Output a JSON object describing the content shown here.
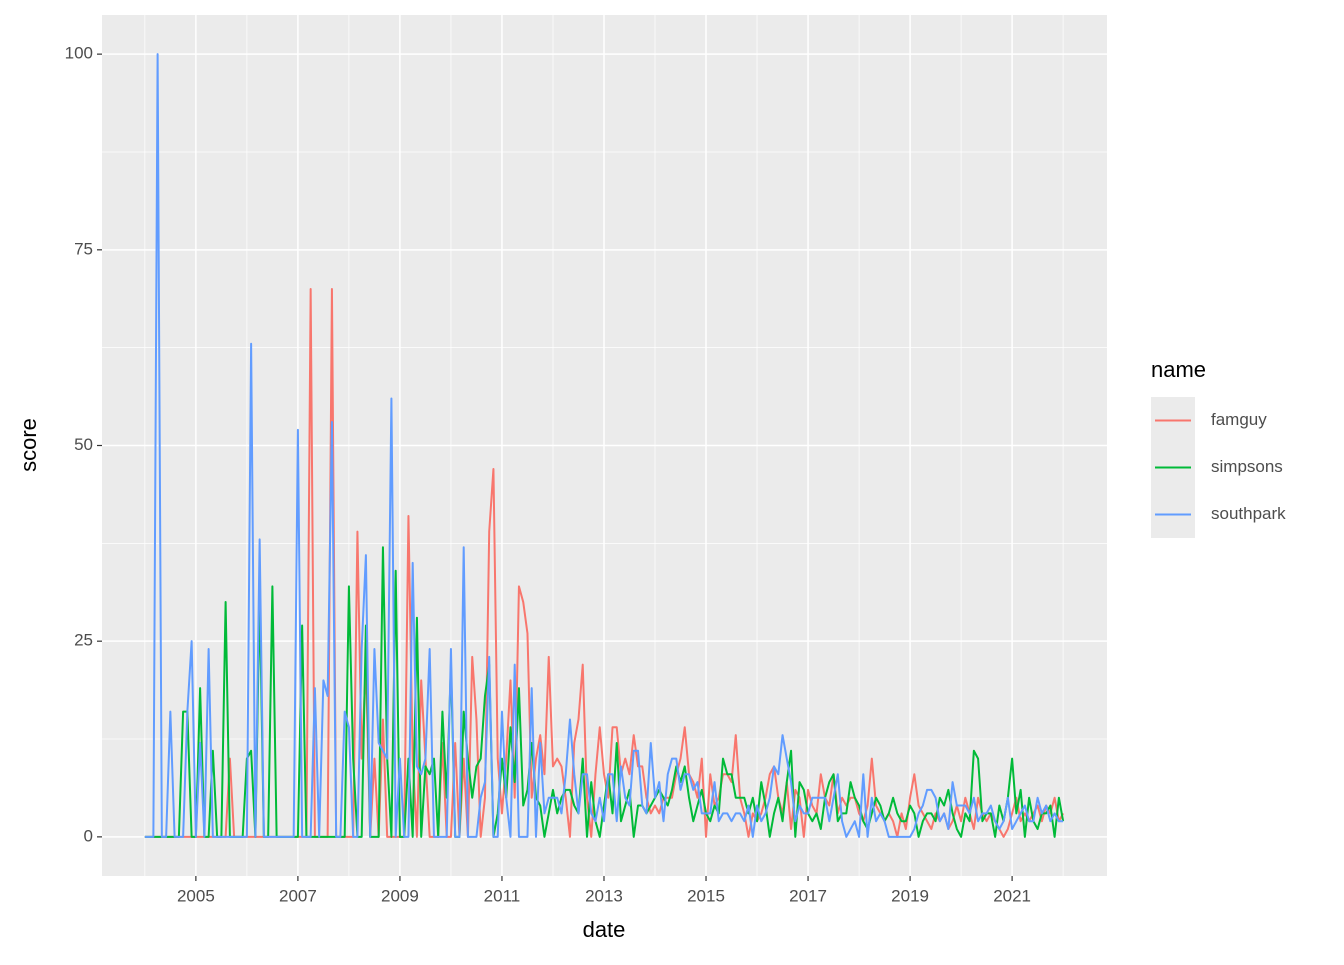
{
  "chart_data": {
    "type": "line",
    "x_label": "date",
    "y_label": "score",
    "legend_title": "name",
    "legend_position": "right",
    "grid": true,
    "xlim": [
      2003.16,
      2022.86
    ],
    "ylim": [
      -5,
      105
    ],
    "xticks": [
      2005,
      2007,
      2009,
      2011,
      2013,
      2015,
      2017,
      2019,
      2021
    ],
    "yticks": [
      0,
      25,
      50,
      75,
      100
    ],
    "x": [
      2004,
      2004.083,
      2004.167,
      2004.25,
      2004.333,
      2004.417,
      2004.5,
      2004.583,
      2004.667,
      2004.75,
      2004.833,
      2004.917,
      2005,
      2005.083,
      2005.167,
      2005.25,
      2005.333,
      2005.417,
      2005.5,
      2005.583,
      2005.667,
      2005.75,
      2005.833,
      2005.917,
      2006,
      2006.083,
      2006.167,
      2006.25,
      2006.333,
      2006.417,
      2006.5,
      2006.583,
      2006.667,
      2006.75,
      2006.833,
      2006.917,
      2007,
      2007.083,
      2007.167,
      2007.25,
      2007.333,
      2007.417,
      2007.5,
      2007.583,
      2007.667,
      2007.75,
      2007.833,
      2007.917,
      2008,
      2008.083,
      2008.167,
      2008.25,
      2008.333,
      2008.417,
      2008.5,
      2008.583,
      2008.667,
      2008.75,
      2008.833,
      2008.917,
      2009,
      2009.083,
      2009.167,
      2009.25,
      2009.333,
      2009.417,
      2009.5,
      2009.583,
      2009.667,
      2009.75,
      2009.833,
      2009.917,
      2010,
      2010.083,
      2010.167,
      2010.25,
      2010.333,
      2010.417,
      2010.5,
      2010.583,
      2010.667,
      2010.75,
      2010.833,
      2010.917,
      2011,
      2011.083,
      2011.167,
      2011.25,
      2011.333,
      2011.417,
      2011.5,
      2011.583,
      2011.667,
      2011.75,
      2011.833,
      2011.917,
      2012,
      2012.083,
      2012.167,
      2012.25,
      2012.333,
      2012.417,
      2012.5,
      2012.583,
      2012.667,
      2012.75,
      2012.833,
      2012.917,
      2013,
      2013.083,
      2013.167,
      2013.25,
      2013.333,
      2013.417,
      2013.5,
      2013.583,
      2013.667,
      2013.75,
      2013.833,
      2013.917,
      2014,
      2014.083,
      2014.167,
      2014.25,
      2014.333,
      2014.417,
      2014.5,
      2014.583,
      2014.667,
      2014.75,
      2014.833,
      2014.917,
      2015,
      2015.083,
      2015.167,
      2015.25,
      2015.333,
      2015.417,
      2015.5,
      2015.583,
      2015.667,
      2015.75,
      2015.833,
      2015.917,
      2016,
      2016.083,
      2016.167,
      2016.25,
      2016.333,
      2016.417,
      2016.5,
      2016.583,
      2016.667,
      2016.75,
      2016.833,
      2016.917,
      2017,
      2017.083,
      2017.167,
      2017.25,
      2017.333,
      2017.417,
      2017.5,
      2017.583,
      2017.667,
      2017.75,
      2017.833,
      2017.917,
      2018,
      2018.083,
      2018.167,
      2018.25,
      2018.333,
      2018.417,
      2018.5,
      2018.583,
      2018.667,
      2018.75,
      2018.833,
      2018.917,
      2019,
      2019.083,
      2019.167,
      2019.25,
      2019.333,
      2019.417,
      2019.5,
      2019.583,
      2019.667,
      2019.75,
      2019.833,
      2019.917,
      2020,
      2020.083,
      2020.167,
      2020.25,
      2020.333,
      2020.417,
      2020.5,
      2020.583,
      2020.667,
      2020.75,
      2020.833,
      2020.917,
      2021,
      2021.083,
      2021.167,
      2021.25,
      2021.333,
      2021.417,
      2021.5,
      2021.583,
      2021.667,
      2021.75,
      2021.833,
      2021.917,
      2022
    ],
    "series": [
      {
        "name": "famguy",
        "color": "#F8766D",
        "values": [
          0,
          0,
          0,
          0,
          0,
          0,
          0,
          0,
          0,
          0,
          0,
          0,
          0,
          0,
          0,
          0,
          0,
          0,
          0,
          0,
          10,
          0,
          0,
          0,
          0,
          0,
          0,
          0,
          0,
          0,
          0,
          0,
          0,
          0,
          0,
          0,
          0,
          0,
          0,
          70,
          0,
          0,
          0,
          0,
          70,
          0,
          0,
          0,
          0,
          0,
          39,
          10,
          22,
          0,
          10,
          0,
          15,
          0,
          0,
          0,
          0,
          0,
          41,
          10,
          0,
          20,
          10,
          0,
          0,
          0,
          12,
          0,
          0,
          12,
          0,
          10,
          0,
          23,
          15,
          0,
          5,
          39,
          47,
          10,
          3,
          10,
          20,
          5,
          32,
          30,
          26,
          5,
          10,
          13,
          8,
          23,
          9,
          10,
          9,
          5,
          0,
          12,
          15,
          22,
          5,
          0,
          8,
          14,
          8,
          5,
          14,
          14,
          8,
          10,
          8,
          13,
          9,
          9,
          5,
          3,
          4,
          3,
          5,
          5,
          5,
          8,
          10,
          14,
          8,
          7,
          5,
          10,
          0,
          8,
          4,
          5,
          8,
          8,
          7,
          13,
          5,
          3,
          0,
          3,
          2,
          3,
          5,
          8,
          9,
          5,
          3,
          7,
          1,
          6,
          5,
          0,
          6,
          4,
          3,
          8,
          5,
          4,
          8,
          3,
          5,
          4,
          5,
          5,
          3,
          2,
          4,
          10,
          4,
          3,
          2,
          3,
          2,
          0,
          3,
          1,
          5,
          8,
          4,
          3,
          2,
          1,
          3,
          2,
          3,
          1,
          2,
          4,
          2,
          5,
          3,
          1,
          5,
          3,
          2,
          3,
          2,
          1,
          0,
          1,
          3,
          5,
          2,
          3,
          2,
          3,
          4,
          2,
          4,
          3,
          5,
          2,
          3
        ]
      },
      {
        "name": "simpsons",
        "color": "#00BA38",
        "values": [
          0,
          0,
          0,
          0,
          0,
          0,
          0,
          0,
          0,
          16,
          16,
          0,
          0,
          19,
          0,
          0,
          11,
          0,
          0,
          30,
          0,
          0,
          0,
          0,
          10,
          11,
          0,
          31,
          0,
          0,
          32,
          0,
          0,
          0,
          0,
          0,
          0,
          27,
          0,
          0,
          0,
          0,
          0,
          0,
          0,
          0,
          0,
          0,
          32,
          10,
          0,
          0,
          27,
          0,
          0,
          0,
          37,
          10,
          0,
          34,
          0,
          0,
          10,
          0,
          28,
          0,
          9,
          8,
          10,
          0,
          16,
          5,
          22,
          0,
          0,
          16,
          10,
          5,
          9,
          10,
          18,
          22,
          0,
          3,
          10,
          5,
          14,
          7,
          19,
          4,
          6,
          12,
          5,
          4,
          0,
          3,
          6,
          3,
          5,
          6,
          6,
          4,
          3,
          10,
          0,
          7,
          2,
          0,
          4,
          8,
          3,
          12,
          2,
          4,
          6,
          0,
          4,
          4,
          3,
          4,
          5,
          6,
          5,
          4,
          6,
          9,
          7,
          9,
          5,
          2,
          4,
          6,
          3,
          2,
          4,
          3,
          10,
          8,
          8,
          5,
          5,
          5,
          3,
          5,
          2,
          7,
          4,
          0,
          3,
          5,
          2,
          7,
          11,
          0,
          7,
          6,
          3,
          2,
          3,
          1,
          5,
          7,
          8,
          2,
          3,
          3,
          7,
          5,
          4,
          2,
          1,
          3,
          5,
          4,
          2,
          3,
          5,
          3,
          2,
          2,
          4,
          3,
          0,
          2,
          3,
          3,
          2,
          5,
          4,
          6,
          3,
          1,
          0,
          3,
          2,
          11,
          10,
          2,
          3,
          3,
          0,
          4,
          2,
          5,
          10,
          3,
          6,
          0,
          5,
          2,
          1,
          3,
          3,
          4,
          0,
          5,
          2
        ]
      },
      {
        "name": "southpark",
        "color": "#619CFF",
        "values": [
          0,
          0,
          0,
          100,
          0,
          0,
          16,
          0,
          0,
          0,
          16,
          25,
          0,
          12,
          0,
          24,
          0,
          0,
          0,
          0,
          0,
          0,
          0,
          0,
          0,
          63,
          0,
          38,
          0,
          0,
          0,
          0,
          0,
          0,
          0,
          0,
          52,
          0,
          0,
          0,
          19,
          0,
          20,
          18,
          53,
          0,
          0,
          16,
          14,
          0,
          0,
          24,
          36,
          0,
          24,
          12,
          11,
          10,
          56,
          0,
          10,
          0,
          0,
          35,
          9,
          8,
          10,
          24,
          0,
          0,
          0,
          0,
          24,
          0,
          0,
          37,
          0,
          0,
          0,
          5,
          7,
          23,
          0,
          0,
          16,
          5,
          0,
          22,
          0,
          0,
          0,
          19,
          0,
          12,
          3,
          5,
          5,
          5,
          3,
          8,
          15,
          8,
          3,
          8,
          8,
          3,
          2,
          5,
          2,
          8,
          8,
          2,
          9,
          5,
          4,
          11,
          11,
          4,
          3,
          12,
          5,
          7,
          2,
          8,
          10,
          10,
          6,
          8,
          8,
          6,
          7,
          3,
          3,
          3,
          7,
          2,
          3,
          3,
          2,
          3,
          3,
          2,
          4,
          0,
          4,
          2,
          3,
          5,
          9,
          8,
          13,
          10,
          7,
          2,
          4,
          3,
          3,
          5,
          5,
          5,
          5,
          2,
          5,
          8,
          2,
          0,
          1,
          2,
          0,
          8,
          0,
          5,
          2,
          3,
          2,
          0,
          0,
          0,
          0,
          0,
          0,
          1,
          3,
          4,
          6,
          6,
          5,
          2,
          3,
          1,
          7,
          4,
          4,
          4,
          3,
          5,
          2,
          3,
          3,
          4,
          2,
          1,
          2,
          5,
          1,
          2,
          3,
          4,
          2,
          2,
          5,
          3,
          4,
          2,
          3,
          2,
          2
        ]
      }
    ]
  }
}
